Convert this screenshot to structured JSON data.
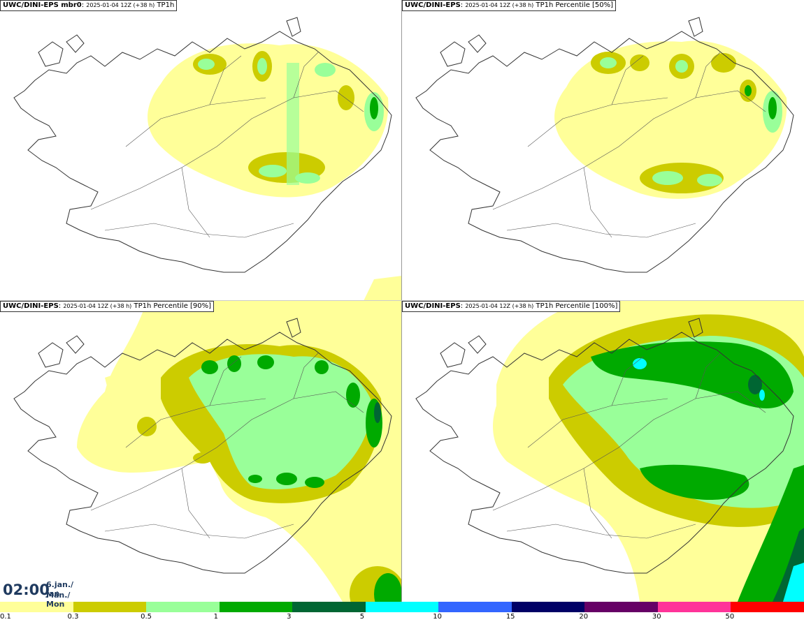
{
  "panels": [
    {
      "model": "UWC/DINI-EPS mbr0",
      "run": "2025-01-04 12Z (+38 h)",
      "field": "TP1h"
    },
    {
      "model": "UWC/DINI-EPS",
      "run": "2025-01-04 12Z (+38 h)",
      "field": "TP1h Percentile [50%]"
    },
    {
      "model": "UWC/DINI-EPS",
      "run": "2025-01-04 12Z (+38 h)",
      "field": "TP1h Percentile [90%]"
    },
    {
      "model": "UWC/DINI-EPS",
      "run": "2025-01-04 12Z (+38 h)",
      "field": "TP1h Percentile [100%]"
    }
  ],
  "valid_time": {
    "time": "02:00",
    "date_line1": "6.jan./ Jan",
    "date_line2": "Mán./ Mon"
  },
  "legend": {
    "colors": [
      "#ffff99",
      "#cccc00",
      "#99ff99",
      "#00aa00",
      "#006633",
      "#00ffff",
      "#3366ff",
      "#000066",
      "#660066",
      "#ff3399",
      "#ff0000"
    ],
    "ticks": [
      "0.1",
      "0.3",
      "0.5",
      "1",
      "3",
      "5",
      "10",
      "15",
      "20",
      "30",
      "50"
    ]
  },
  "map_colors": {
    "coast": "#333333",
    "roads": "#555555"
  }
}
